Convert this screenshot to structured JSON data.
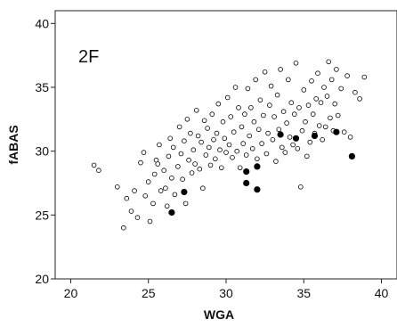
{
  "chart_data": {
    "type": "scatter",
    "title": "",
    "panel_label": "2F",
    "xlabel": "WGA",
    "ylabel": "fABAS",
    "xlim": [
      19,
      41
    ],
    "ylim": [
      20,
      41
    ],
    "x_ticks": [
      20,
      25,
      30,
      35,
      40
    ],
    "y_ticks": [
      20,
      25,
      30,
      35,
      40
    ],
    "grid": false,
    "series": [
      {
        "marker": "open-circle",
        "color": "#000000",
        "points": [
          [
            21.5,
            28.9
          ],
          [
            21.8,
            28.5
          ],
          [
            23.0,
            27.2
          ],
          [
            23.4,
            24.0
          ],
          [
            23.6,
            26.3
          ],
          [
            23.9,
            25.3
          ],
          [
            24.1,
            26.9
          ],
          [
            24.3,
            24.8
          ],
          [
            24.5,
            29.1
          ],
          [
            24.7,
            29.9
          ],
          [
            24.8,
            26.5
          ],
          [
            25.0,
            27.6
          ],
          [
            25.1,
            24.5
          ],
          [
            25.3,
            25.9
          ],
          [
            25.4,
            28.2
          ],
          [
            25.5,
            29.3
          ],
          [
            25.6,
            29.0
          ],
          [
            25.7,
            30.5
          ],
          [
            25.8,
            26.9
          ],
          [
            26.0,
            28.5
          ],
          [
            26.1,
            27.1
          ],
          [
            26.2,
            25.7
          ],
          [
            26.3,
            29.6
          ],
          [
            26.4,
            31.0
          ],
          [
            26.5,
            27.9
          ],
          [
            26.6,
            30.3
          ],
          [
            26.7,
            26.6
          ],
          [
            26.9,
            28.8
          ],
          [
            27.0,
            31.9
          ],
          [
            27.1,
            29.8
          ],
          [
            27.2,
            27.8
          ],
          [
            27.3,
            30.8
          ],
          [
            27.4,
            25.9
          ],
          [
            27.5,
            32.5
          ],
          [
            27.6,
            29.3
          ],
          [
            27.7,
            31.4
          ],
          [
            27.8,
            28.3
          ],
          [
            27.9,
            30.1
          ],
          [
            28.0,
            29.0
          ],
          [
            28.1,
            33.2
          ],
          [
            28.2,
            31.2
          ],
          [
            28.3,
            28.6
          ],
          [
            28.4,
            30.7
          ],
          [
            28.5,
            27.1
          ],
          [
            28.6,
            32.4
          ],
          [
            28.7,
            29.7
          ],
          [
            28.8,
            31.8
          ],
          [
            28.9,
            30.3
          ],
          [
            29.0,
            28.9
          ],
          [
            29.1,
            32.9
          ],
          [
            29.2,
            30.9
          ],
          [
            29.3,
            29.4
          ],
          [
            29.4,
            31.4
          ],
          [
            29.5,
            33.7
          ],
          [
            29.6,
            30.1
          ],
          [
            29.7,
            28.7
          ],
          [
            29.8,
            32.3
          ],
          [
            29.9,
            31.0
          ],
          [
            30.0,
            29.9
          ],
          [
            30.1,
            34.2
          ],
          [
            30.2,
            30.5
          ],
          [
            30.3,
            32.7
          ],
          [
            30.4,
            29.5
          ],
          [
            30.5,
            31.5
          ],
          [
            30.6,
            35.0
          ],
          [
            30.7,
            30.0
          ],
          [
            30.8,
            33.4
          ],
          [
            30.9,
            28.7
          ],
          [
            31.0,
            31.9
          ],
          [
            31.1,
            30.6
          ],
          [
            31.2,
            32.9
          ],
          [
            31.3,
            29.7
          ],
          [
            31.4,
            34.9
          ],
          [
            31.5,
            31.2
          ],
          [
            31.6,
            33.4
          ],
          [
            31.7,
            30.2
          ],
          [
            31.8,
            32.3
          ],
          [
            31.9,
            35.6
          ],
          [
            32.0,
            29.4
          ],
          [
            32.1,
            31.7
          ],
          [
            32.2,
            34.0
          ],
          [
            32.3,
            30.6
          ],
          [
            32.4,
            32.8
          ],
          [
            32.5,
            36.2
          ],
          [
            32.6,
            29.8
          ],
          [
            32.7,
            31.4
          ],
          [
            32.8,
            33.6
          ],
          [
            32.9,
            35.1
          ],
          [
            33.0,
            30.9
          ],
          [
            33.1,
            32.7
          ],
          [
            33.2,
            29.2
          ],
          [
            33.3,
            34.4
          ],
          [
            33.4,
            31.7
          ],
          [
            33.5,
            36.4
          ],
          [
            33.6,
            30.3
          ],
          [
            33.7,
            33.1
          ],
          [
            33.8,
            29.9
          ],
          [
            33.9,
            32.2
          ],
          [
            34.0,
            35.6
          ],
          [
            34.1,
            31.1
          ],
          [
            34.2,
            33.8
          ],
          [
            34.3,
            30.5
          ],
          [
            34.4,
            32.9
          ],
          [
            34.5,
            36.9
          ],
          [
            34.6,
            30.2
          ],
          [
            34.7,
            33.4
          ],
          [
            34.8,
            27.2
          ],
          [
            34.9,
            31.6
          ],
          [
            35.0,
            34.8
          ],
          [
            35.1,
            32.3
          ],
          [
            35.2,
            29.6
          ],
          [
            35.3,
            33.6
          ],
          [
            35.4,
            30.7
          ],
          [
            35.5,
            35.5
          ],
          [
            35.6,
            32.9
          ],
          [
            35.7,
            31.4
          ],
          [
            35.8,
            34.1
          ],
          [
            35.9,
            36.1
          ],
          [
            36.0,
            32.0
          ],
          [
            36.1,
            33.8
          ],
          [
            36.2,
            30.9
          ],
          [
            36.3,
            35.0
          ],
          [
            36.4,
            31.9
          ],
          [
            36.5,
            34.3
          ],
          [
            36.6,
            37.0
          ],
          [
            36.7,
            32.6
          ],
          [
            36.8,
            35.6
          ],
          [
            36.9,
            31.6
          ],
          [
            37.0,
            33.7
          ],
          [
            37.1,
            36.4
          ],
          [
            37.2,
            32.8
          ],
          [
            37.4,
            34.9
          ],
          [
            37.6,
            31.5
          ],
          [
            37.8,
            35.9
          ],
          [
            38.0,
            31.1
          ],
          [
            38.3,
            34.6
          ],
          [
            38.6,
            34.1
          ],
          [
            38.9,
            35.8
          ]
        ]
      },
      {
        "marker": "filled-circle",
        "color": "#000000",
        "points": [
          [
            26.5,
            25.2
          ],
          [
            27.3,
            26.8
          ],
          [
            31.3,
            28.4
          ],
          [
            31.3,
            27.5
          ],
          [
            32.0,
            27.0
          ],
          [
            32.0,
            28.8
          ],
          [
            33.5,
            31.3
          ],
          [
            34.5,
            31.0
          ],
          [
            35.7,
            31.2
          ],
          [
            37.1,
            31.5
          ],
          [
            38.1,
            29.6
          ]
        ]
      }
    ]
  }
}
